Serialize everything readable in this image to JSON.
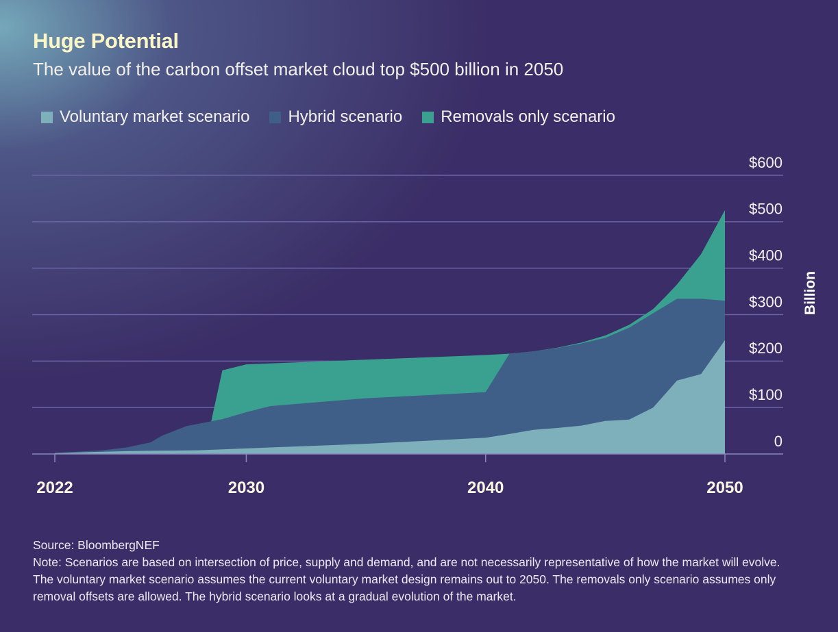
{
  "title": "Huge Potential",
  "subtitle": "The value of the carbon offset market cloud top $500 billion in 2050",
  "source": "Source: BloombergNEF",
  "note": "Note: Scenarios are based on intersection of price, supply and demand, and are not necessarily representative of how the market will evolve. The voluntary market scenario assumes the current voluntary market design remains out to 2050. The removals only scenario assumes only removal offsets are allowed. The hybrid scenario looks at a gradual evolution of the market.",
  "colors": {
    "background": "#3b2d67",
    "voluntary": "#7db0bb",
    "hybrid": "#3f5e88",
    "removals": "#3aa08f",
    "grid": "#6a63a6"
  },
  "chart_data": {
    "type": "area",
    "title": "Huge Potential",
    "subtitle": "The value of the carbon offset market cloud top $500 billion in 2050",
    "ylabel": "Billion",
    "xlabel": "",
    "ylim": [
      0,
      600
    ],
    "xlim": [
      2022,
      2050
    ],
    "yticks": [
      0,
      100,
      200,
      300,
      400,
      500,
      600
    ],
    "ytick_labels": [
      "0",
      "$100",
      "$200",
      "$300",
      "$400",
      "$500",
      "$600"
    ],
    "xticks": [
      2022,
      2030,
      2040,
      2050
    ],
    "xtick_labels": [
      "2022",
      "2030",
      "2040",
      "2050"
    ],
    "legend_position": "top-left",
    "series": [
      {
        "name": "Removals only scenario",
        "key": "removals",
        "x": [
          2022,
          2024,
          2025,
          2026,
          2027,
          2027.7,
          2028.5,
          2029,
          2030,
          2031,
          2035,
          2040,
          2041,
          2042,
          2043,
          2044,
          2045,
          2046,
          2047,
          2047.5,
          2048,
          2049,
          2050
        ],
        "values": [
          2,
          5,
          8,
          12,
          25,
          30,
          62,
          180,
          193,
          195,
          203,
          213,
          216,
          221,
          229,
          240,
          255,
          278,
          312,
          338,
          365,
          430,
          525
        ]
      },
      {
        "name": "Hybrid scenario",
        "key": "hybrid",
        "x": [
          2022,
          2024,
          2025,
          2026,
          2026.5,
          2027,
          2027.5,
          2028,
          2029,
          2030,
          2031,
          2035,
          2040,
          2041,
          2042,
          2043,
          2044,
          2045,
          2046,
          2047,
          2048,
          2049,
          2050
        ],
        "values": [
          2,
          8,
          14,
          25,
          40,
          50,
          60,
          65,
          75,
          90,
          103,
          120,
          133,
          216,
          221,
          228,
          238,
          250,
          272,
          303,
          334,
          334,
          330
        ]
      },
      {
        "name": "Voluntary market scenario",
        "key": "voluntary",
        "x": [
          2022,
          2025,
          2026,
          2028,
          2029,
          2030,
          2035,
          2040,
          2041,
          2042,
          2043,
          2044,
          2045,
          2046,
          2047,
          2048,
          2049,
          2050
        ],
        "values": [
          2,
          6,
          7,
          8,
          10,
          12,
          22,
          35,
          43,
          52,
          56,
          61,
          71,
          74,
          100,
          158,
          172,
          245
        ]
      }
    ],
    "legend": [
      {
        "label": "Voluntary market scenario",
        "key": "voluntary"
      },
      {
        "label": "Hybrid scenario",
        "key": "hybrid"
      },
      {
        "label": "Removals only scenario",
        "key": "removals"
      }
    ]
  }
}
